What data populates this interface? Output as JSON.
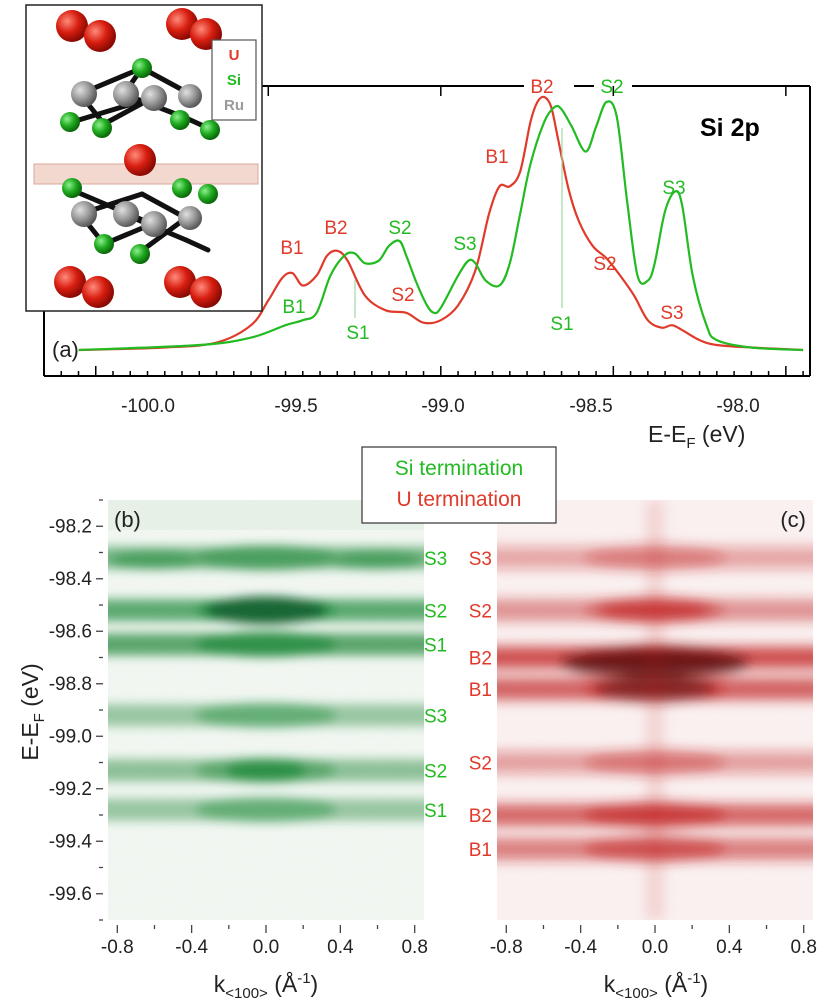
{
  "colors": {
    "si": "#22bb22",
    "u": "#e03a2a",
    "ru": "#9a9a9a",
    "frame": "#000000",
    "si_dark": "#0c5a2a",
    "u_dark": "#5a0c0c"
  },
  "legend": {
    "si_text": "Si termination",
    "u_text": "U termination"
  },
  "inset": {
    "legend": [
      "U",
      "Si",
      "Ru"
    ]
  },
  "panel_a": {
    "panel_label": "(a)",
    "title": "Si 2p",
    "xlabel_main": "E-E",
    "xlabel_sub": "F",
    "xlabel_unit": " (eV)",
    "x_ticks": [
      "-100.0",
      "-99.5",
      "-99.0",
      "-98.5",
      "-98.0"
    ],
    "peak_labels": [
      {
        "text": "B1",
        "color": "u"
      },
      {
        "text": "B2",
        "color": "u"
      },
      {
        "text": "S2",
        "color": "u"
      },
      {
        "text": "B1",
        "color": "u"
      },
      {
        "text": "B2",
        "color": "u"
      },
      {
        "text": "S2",
        "color": "u"
      },
      {
        "text": "S3",
        "color": "u"
      },
      {
        "text": "B1",
        "color": "si"
      },
      {
        "text": "S1",
        "color": "si"
      },
      {
        "text": "S2",
        "color": "si"
      },
      {
        "text": "S3",
        "color": "si"
      },
      {
        "text": "S1",
        "color": "si"
      },
      {
        "text": "S2",
        "color": "si"
      },
      {
        "text": "S3",
        "color": "si"
      }
    ]
  },
  "panel_b": {
    "panel_label": "(b)",
    "band_labels": [
      "S3",
      "S2",
      "S1",
      "S3",
      "S2",
      "S1"
    ]
  },
  "panel_c": {
    "panel_label": "(c)",
    "band_labels": [
      "S3",
      "S2",
      "B2",
      "B1",
      "S2",
      "B2",
      "B1"
    ]
  },
  "bottom_axes": {
    "ylabel_main": "E-E",
    "ylabel_sub": "F",
    "ylabel_unit": " (eV)",
    "y_ticks": [
      "-98.2",
      "-98.4",
      "-98.6",
      "-98.8",
      "-99.0",
      "-99.2",
      "-99.4",
      "-99.6"
    ],
    "x_ticks": [
      "-0.8",
      "-0.4",
      "0.0",
      "0.4",
      "0.8"
    ],
    "xlabel_main": "k",
    "xlabel_sub": "<100>",
    "xlabel_unit_pre": " (Å",
    "xlabel_sup": "-1",
    "xlabel_unit_post": ")"
  },
  "chart_data": [
    {
      "type": "line",
      "title": "Si 2p",
      "xlabel": "E-EF (eV)",
      "xlim": [
        -100.15,
        -97.93
      ],
      "series": [
        {
          "name": "U termination",
          "color": "#e03a2a",
          "x": [
            -100.05,
            -99.8,
            -99.65,
            -99.55,
            -99.5,
            -99.46,
            -99.43,
            -99.4,
            -99.36,
            -99.33,
            -99.3,
            -99.27,
            -99.22,
            -99.16,
            -99.1,
            -99.05,
            -99.0,
            -98.95,
            -98.9,
            -98.86,
            -98.83,
            -98.8,
            -98.77,
            -98.74,
            -98.72,
            -98.7,
            -98.68,
            -98.66,
            -98.63,
            -98.6,
            -98.56,
            -98.52,
            -98.48,
            -98.44,
            -98.4,
            -98.36,
            -98.33,
            -98.3,
            -98.25,
            -98.2,
            -98.1,
            -97.95
          ],
          "y": [
            0.0,
            0.01,
            0.03,
            0.1,
            0.2,
            0.29,
            0.31,
            0.26,
            0.3,
            0.38,
            0.4,
            0.36,
            0.22,
            0.16,
            0.15,
            0.11,
            0.12,
            0.18,
            0.32,
            0.55,
            0.66,
            0.66,
            0.72,
            0.92,
            1.0,
            1.02,
            0.98,
            0.85,
            0.65,
            0.52,
            0.42,
            0.37,
            0.3,
            0.22,
            0.12,
            0.09,
            0.1,
            0.08,
            0.04,
            0.02,
            0.01,
            0.0
          ]
        },
        {
          "name": "Si termination",
          "color": "#22bb22",
          "x": [
            -100.05,
            -99.7,
            -99.55,
            -99.45,
            -99.4,
            -99.36,
            -99.32,
            -99.28,
            -99.25,
            -99.22,
            -99.18,
            -99.15,
            -99.12,
            -99.1,
            -99.07,
            -99.04,
            -99.02,
            -99.0,
            -98.95,
            -98.92,
            -98.9,
            -98.87,
            -98.83,
            -98.8,
            -98.77,
            -98.74,
            -98.7,
            -98.67,
            -98.65,
            -98.62,
            -98.58,
            -98.55,
            -98.52,
            -98.49,
            -98.46,
            -98.43,
            -98.4,
            -98.38,
            -98.35,
            -98.32,
            -98.3,
            -98.27,
            -98.23,
            -98.2,
            -98.1,
            -97.95
          ],
          "y": [
            0.0,
            0.02,
            0.05,
            0.1,
            0.12,
            0.15,
            0.3,
            0.38,
            0.39,
            0.35,
            0.36,
            0.42,
            0.44,
            0.38,
            0.27,
            0.18,
            0.15,
            0.17,
            0.3,
            0.36,
            0.35,
            0.28,
            0.26,
            0.35,
            0.55,
            0.75,
            0.92,
            0.98,
            0.97,
            0.9,
            0.8,
            0.9,
            1.0,
            0.94,
            0.6,
            0.3,
            0.28,
            0.35,
            0.56,
            0.64,
            0.58,
            0.3,
            0.1,
            0.04,
            0.01,
            0.0
          ]
        }
      ]
    },
    {
      "type": "heatmap",
      "title": "Si termination",
      "xlabel": "k<100> (Å-1)",
      "ylabel": "E-EF (eV)",
      "xlim": [
        -0.85,
        0.85
      ],
      "ylim": [
        -99.7,
        -98.1
      ],
      "bands": [
        {
          "label": "S3",
          "energy": -98.32,
          "intensity": 0.55
        },
        {
          "label": "S2",
          "energy": -98.52,
          "intensity": 0.8
        },
        {
          "label": "S1",
          "energy": -98.65,
          "intensity": 0.85
        },
        {
          "label": "S3",
          "energy": -98.92,
          "intensity": 0.3
        },
        {
          "label": "S2",
          "energy": -99.13,
          "intensity": 0.4
        },
        {
          "label": "S1",
          "energy": -99.28,
          "intensity": 0.3
        }
      ]
    },
    {
      "type": "heatmap",
      "title": "U termination",
      "xlabel": "k<100> (Å-1)",
      "ylabel": "E-EF (eV)",
      "xlim": [
        -0.85,
        0.85
      ],
      "ylim": [
        -99.7,
        -98.1
      ],
      "bands": [
        {
          "label": "S3",
          "energy": -98.32,
          "intensity": 0.15
        },
        {
          "label": "S2",
          "energy": -98.52,
          "intensity": 0.35
        },
        {
          "label": "B2",
          "energy": -98.7,
          "intensity": 0.95
        },
        {
          "label": "B1",
          "energy": -98.82,
          "intensity": 0.8
        },
        {
          "label": "S2",
          "energy": -99.1,
          "intensity": 0.2
        },
        {
          "label": "B2",
          "energy": -99.3,
          "intensity": 0.7
        },
        {
          "label": "B1",
          "energy": -99.43,
          "intensity": 0.5
        }
      ]
    }
  ]
}
